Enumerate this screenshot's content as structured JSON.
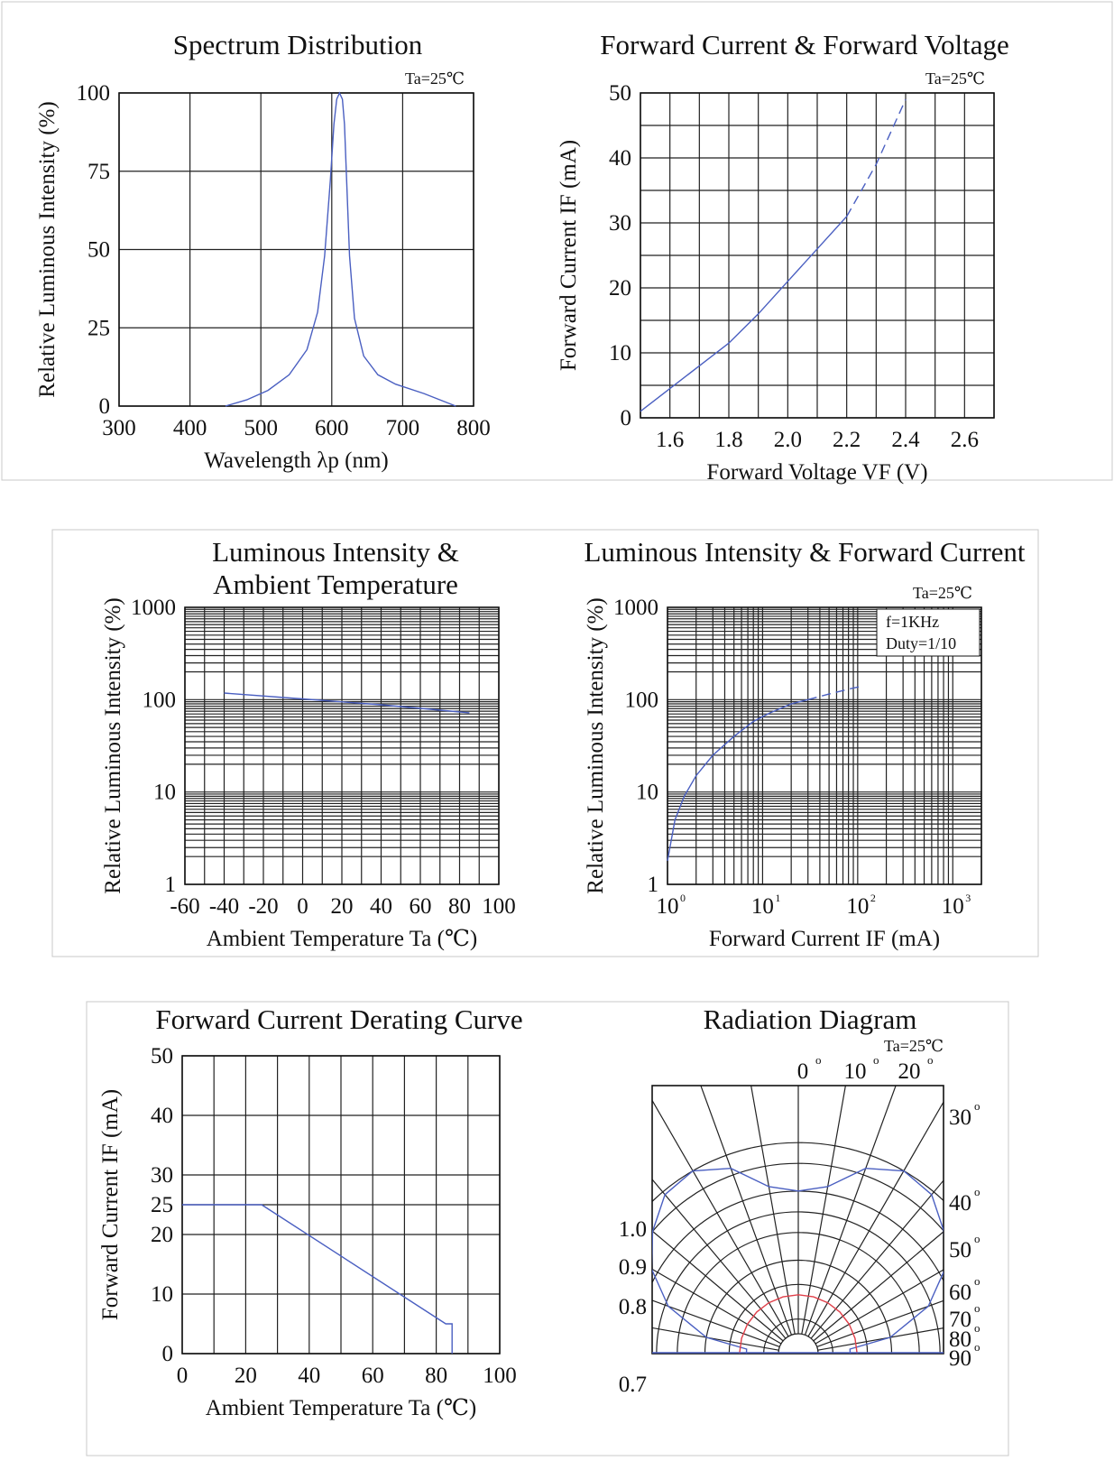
{
  "colors": {
    "curve": "#4a5fc1",
    "accent": "#e0404a",
    "grid": "#222222"
  },
  "chart_data": [
    {
      "id": "spectrum",
      "type": "line",
      "title": "Spectrum Distribution",
      "note": "Ta=25℃",
      "xlabel": "Wavelength λp (nm)",
      "ylabel": "Relative Luminous Intensity (%)",
      "xlim": [
        300,
        800
      ],
      "ylim": [
        0,
        100
      ],
      "xticks": [
        300,
        400,
        500,
        600,
        700,
        800
      ],
      "yticks": [
        0,
        25,
        50,
        75,
        100
      ],
      "series": [
        {
          "x": [
            450,
            480,
            510,
            540,
            565,
            580,
            590,
            598,
            603,
            607,
            611,
            615,
            618,
            621,
            625,
            632,
            645,
            665,
            690,
            730,
            775
          ],
          "y": [
            0,
            2,
            5,
            10,
            18,
            30,
            48,
            72,
            90,
            98,
            100,
            98,
            90,
            72,
            48,
            28,
            16,
            10,
            7,
            4,
            0
          ]
        }
      ]
    },
    {
      "id": "ivcurve",
      "type": "line",
      "title": "Forward Current & Forward Voltage",
      "note": "Ta=25℃",
      "xlabel": "Forward Voltage VF (V)",
      "ylabel": "Forward Current IF (mA)",
      "xlim": [
        1.5,
        2.7
      ],
      "ylim": [
        0,
        50
      ],
      "xticks": [
        1.6,
        1.8,
        2.0,
        2.2,
        2.4,
        2.6
      ],
      "xtick_labels": [
        "1.6",
        "1.8",
        "2.0",
        "2.2",
        "2.4",
        "2.6"
      ],
      "yticks": [
        0,
        10,
        20,
        30,
        40,
        50
      ],
      "series": [
        {
          "x": [
            1.5,
            1.6,
            1.7,
            1.8,
            1.9,
            2.0,
            2.1,
            2.2
          ],
          "y": [
            1,
            4.5,
            8,
            11.5,
            16,
            21,
            26,
            31
          ],
          "style": "solid"
        },
        {
          "x": [
            2.2,
            2.3,
            2.4
          ],
          "y": [
            31,
            39,
            49
          ],
          "style": "dashed"
        }
      ]
    },
    {
      "id": "temp",
      "type": "line",
      "title": [
        "Luminous Intensity &",
        "Ambient Temperature"
      ],
      "xlabel": "Ambient Temperature Ta (℃)",
      "ylabel": "Relative Luminous Intensity (%)",
      "xlim": [
        -60,
        100
      ],
      "ylim": [
        1,
        1000
      ],
      "yscale": "log",
      "xticks": [
        -60,
        -40,
        -20,
        0,
        20,
        40,
        60,
        80,
        100
      ],
      "yticks": [
        1,
        10,
        100,
        1000
      ],
      "series": [
        {
          "x": [
            -40,
            0,
            40,
            85
          ],
          "y": [
            118,
            102,
            88,
            72
          ]
        }
      ]
    },
    {
      "id": "current",
      "type": "line",
      "title": "Luminous Intensity & Forward Current",
      "note": "Ta=25℃",
      "box_lines": [
        "f=1KHz",
        "Duty=1/10"
      ],
      "xlabel": "Forward Current IF (mA)",
      "ylabel": "Relative Luminous Intensity (%)",
      "xlim": [
        1,
        2000
      ],
      "ylim": [
        1,
        1000
      ],
      "xscale": "log",
      "yscale": "log",
      "xticks": [
        1,
        10,
        100,
        1000
      ],
      "xtick_base": [
        "10",
        "10",
        "10",
        "10"
      ],
      "xtick_exp": [
        "0",
        "1",
        "2",
        "3"
      ],
      "yticks": [
        1,
        10,
        100,
        1000
      ],
      "series": [
        {
          "x": [
            1,
            1.2,
            1.5,
            2,
            3,
            5,
            8,
            12,
            20,
            30
          ],
          "y": [
            1.8,
            5,
            9,
            15,
            25,
            40,
            58,
            72,
            90,
            100
          ],
          "style": "solid"
        },
        {
          "x": [
            30,
            50,
            80,
            110
          ],
          "y": [
            100,
            115,
            130,
            140
          ],
          "style": "dashed"
        }
      ]
    },
    {
      "id": "derating",
      "type": "line",
      "title": "Forward Current Derating Curve",
      "xlabel": "Ambient Temperature Ta (℃)",
      "ylabel": "Forward Current IF (mA)",
      "xlim": [
        0,
        100
      ],
      "ylim": [
        0,
        50
      ],
      "xticks": [
        0,
        20,
        40,
        60,
        80,
        100
      ],
      "yticks": [
        0,
        10,
        20,
        25,
        30,
        40,
        50
      ],
      "series": [
        {
          "x": [
            0,
            25,
            83,
            83,
            85,
            85
          ],
          "y": [
            25,
            25,
            5,
            5,
            5,
            0
          ]
        }
      ]
    },
    {
      "id": "radiation",
      "type": "polar",
      "title": "Radiation Diagram",
      "note": "Ta=25℃",
      "angle_labels_top": [
        "0",
        "10",
        "20"
      ],
      "angle_labels_right": [
        "30",
        "40",
        "50",
        "60",
        "70",
        "80",
        "90"
      ],
      "degree_symbol": "o",
      "radial_labels": [
        "1.0",
        "0.9",
        "0.8",
        "0.7"
      ],
      "series": [
        {
          "name": "",
          "angles": [
            0,
            10,
            20,
            30,
            40,
            50,
            60,
            70,
            80,
            85,
            90
          ],
          "values": [
            0.92,
            0.94,
            1.02,
            1.06,
            1.05,
            1.0,
            0.94,
            0.85,
            0.72,
            0.6,
            0.6
          ],
          "color": "#4a5fc1"
        },
        {
          "name": "",
          "angles": [
            0,
            15,
            30,
            45,
            60,
            75,
            90
          ],
          "values": [
            0.62,
            0.62,
            0.62,
            0.62,
            0.62,
            0.62,
            0.62
          ],
          "color": "#e0404a"
        }
      ]
    }
  ]
}
